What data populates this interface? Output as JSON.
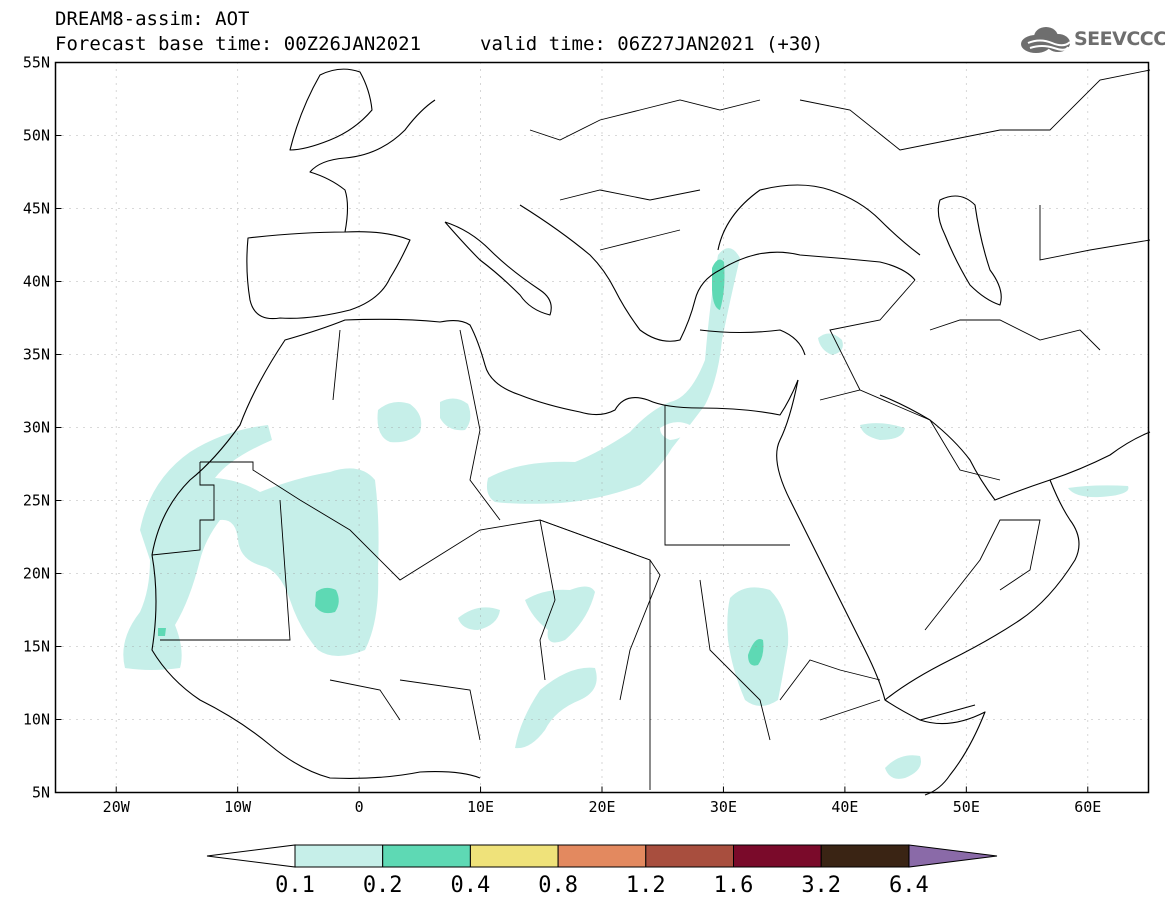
{
  "header": {
    "title": "DREAM8-assim: AOT",
    "base_time": "Forecast base time: 00Z26JAN2021",
    "valid_time": "valid time: 06Z27JAN2021 (+30)"
  },
  "logo": {
    "text": "SEEVCCC",
    "icon": "cloud-icon"
  },
  "map": {
    "lon_range": [
      -25,
      65
    ],
    "lat_range": [
      5,
      55
    ],
    "lat_labels": [
      "55N",
      "50N",
      "45N",
      "40N",
      "35N",
      "30N",
      "25N",
      "20N",
      "15N",
      "10N",
      "5N"
    ],
    "lon_labels": [
      "20W",
      "10W",
      "0",
      "10E",
      "20E",
      "30E",
      "40E",
      "50E",
      "60E"
    ]
  },
  "colorbar": {
    "levels": [
      "0.1",
      "0.2",
      "0.4",
      "0.8",
      "1.2",
      "1.6",
      "3.2",
      "6.4"
    ],
    "colors": [
      "#ffffff",
      "#c6efe9",
      "#5ed9b4",
      "#efe27a",
      "#e3895f",
      "#a84e3e",
      "#7a0a2a",
      "#3a2414",
      "#8a6aa8"
    ]
  }
}
